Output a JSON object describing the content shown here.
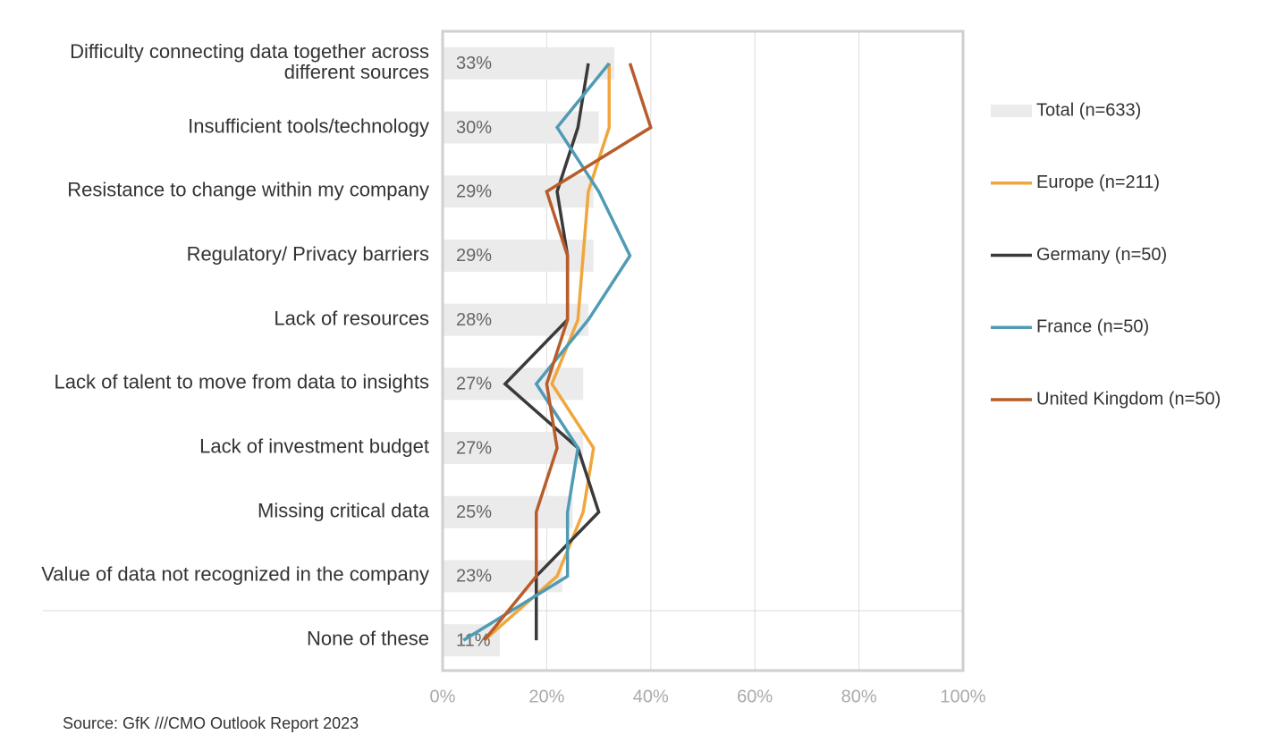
{
  "chart_data": {
    "type": "bar",
    "orientation": "horizontal",
    "categories": [
      "Difficulty connecting data together across different sources",
      "Insufficient tools/technology",
      "Resistance to change within my company",
      "Regulatory/ Privacy barriers",
      "Lack of resources",
      "Lack of talent to move from data to insights",
      "Lack of investment budget",
      "Missing critical data",
      "Value of data not recognized in the company",
      "None of these"
    ],
    "series": [
      {
        "name": "Total (n=633)",
        "type": "bar",
        "color": "#ebebeb",
        "values": [
          33,
          30,
          29,
          29,
          28,
          27,
          27,
          25,
          23,
          11
        ],
        "value_labels": [
          "33%",
          "30%",
          "29%",
          "29%",
          "28%",
          "27%",
          "27%",
          "25%",
          "23%",
          "11%"
        ]
      },
      {
        "name": "Europe (n=211)",
        "type": "line",
        "color": "#f0a63c",
        "values": [
          32,
          32,
          28,
          27,
          26,
          21,
          29,
          27,
          22,
          8
        ]
      },
      {
        "name": "Germany (n=50)",
        "type": "line",
        "color": "#3a3a3a",
        "values": [
          28,
          26,
          22,
          24,
          24,
          12,
          26,
          30,
          18,
          18
        ]
      },
      {
        "name": "France (n=50)",
        "type": "line",
        "color": "#4f9bb5",
        "values": [
          32,
          22,
          30,
          36,
          28,
          18,
          26,
          24,
          24,
          4
        ]
      },
      {
        "name": "United Kingdom (n=50)",
        "type": "line",
        "color": "#b85c2a",
        "values": [
          36,
          40,
          20,
          24,
          24,
          20,
          22,
          18,
          18,
          8
        ]
      }
    ],
    "xlim": [
      0,
      100
    ],
    "xticks": [
      {
        "value": 0,
        "label": "0%"
      },
      {
        "value": 20,
        "label": "20%"
      },
      {
        "value": 40,
        "label": "40%"
      },
      {
        "value": 60,
        "label": "60%"
      },
      {
        "value": 80,
        "label": "80%"
      },
      {
        "value": 100,
        "label": "100%"
      }
    ],
    "grid": true,
    "legend": "right",
    "source": "Source: GfK ///CMO Outlook Report 2023"
  }
}
